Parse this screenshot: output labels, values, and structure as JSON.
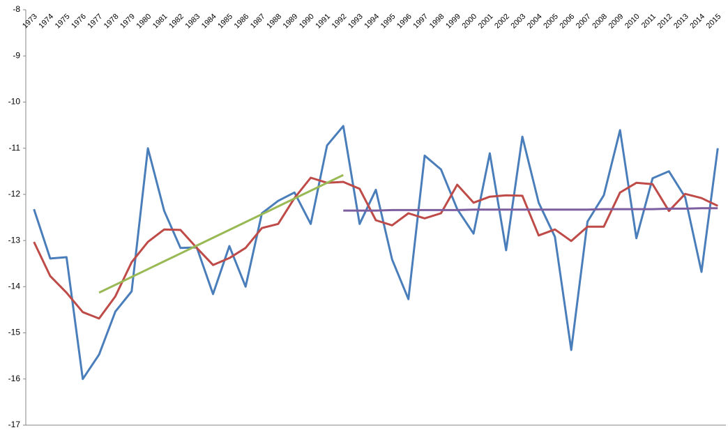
{
  "chart_data": {
    "type": "line",
    "categories": [
      "1973",
      "1974",
      "1975",
      "1976",
      "1977",
      "1978",
      "1979",
      "1980",
      "1981",
      "1982",
      "1983",
      "1984",
      "1985",
      "1986",
      "1987",
      "1988",
      "1989",
      "1990",
      "1991",
      "1992",
      "1993",
      "1994",
      "1995",
      "1996",
      "1997",
      "1998",
      "1999",
      "2000",
      "2001",
      "2002",
      "2003",
      "2004",
      "2005",
      "2006",
      "2007",
      "2008",
      "2009",
      "2010",
      "2011",
      "2012",
      "2013",
      "2014",
      "2015"
    ],
    "series": [
      {
        "color": "#4a7ebb",
        "values": [
          -12.32,
          -13.39,
          -13.36,
          -16.0,
          -15.47,
          -14.54,
          -14.1,
          -11.0,
          -12.36,
          -13.16,
          -13.15,
          -14.16,
          -13.12,
          -14.0,
          -12.41,
          -12.14,
          -11.96,
          -12.64,
          -10.94,
          -10.52,
          -12.64,
          -11.9,
          -13.41,
          -14.27,
          -11.16,
          -11.46,
          -12.32,
          -12.85,
          -11.11,
          -13.21,
          -10.75,
          -12.18,
          -12.92,
          -15.37,
          -12.59,
          -12.02,
          -10.61,
          -12.95,
          -11.65,
          -11.5,
          -12.06,
          -13.68,
          -11.0
        ]
      },
      {
        "color": "#be4b48",
        "values": [
          -13.03,
          -13.77,
          -14.13,
          -14.55,
          -14.69,
          -14.21,
          -13.47,
          -13.03,
          -12.76,
          -12.77,
          -13.16,
          -13.53,
          -13.38,
          -13.16,
          -12.73,
          -12.64,
          -12.08,
          -11.64,
          -11.75,
          -11.73,
          -11.88,
          -12.56,
          -12.67,
          -12.41,
          -12.52,
          -12.41,
          -11.79,
          -12.18,
          -12.05,
          -12.02,
          -12.03,
          -12.89,
          -12.76,
          -13.01,
          -12.7,
          -12.7,
          -11.96,
          -11.75,
          -11.78,
          -12.36,
          -11.99,
          -12.08,
          -12.25
        ]
      },
      {
        "color": "#98b954",
        "values": [
          null,
          null,
          null,
          null,
          -14.13,
          -13.96,
          -13.79,
          -13.62,
          -13.45,
          -13.28,
          -13.11,
          -12.94,
          -12.77,
          -12.6,
          -12.43,
          -12.26,
          -12.09,
          -11.92,
          -11.75,
          -11.58,
          null,
          null,
          null,
          null,
          null,
          null,
          null,
          null,
          null,
          null,
          null,
          null,
          null,
          null,
          null,
          null,
          null,
          null,
          null,
          null,
          null,
          null,
          null
        ]
      },
      {
        "color": "#7d5fa0",
        "values": [
          null,
          null,
          null,
          null,
          null,
          null,
          null,
          null,
          null,
          null,
          null,
          null,
          null,
          null,
          null,
          null,
          null,
          null,
          null,
          -12.35,
          -12.35,
          -12.35,
          -12.34,
          -12.34,
          -12.34,
          -12.34,
          -12.34,
          -12.33,
          -12.33,
          -12.33,
          -12.33,
          -12.33,
          -12.33,
          -12.33,
          -12.33,
          -12.32,
          -12.32,
          -12.32,
          -12.32,
          -12.31,
          -12.31,
          -12.3,
          -12.3
        ]
      }
    ],
    "ylim": [
      -17,
      -8
    ],
    "yticks": [
      -8,
      -9,
      -10,
      -11,
      -12,
      -13,
      -14,
      -15,
      -16,
      -17
    ]
  }
}
